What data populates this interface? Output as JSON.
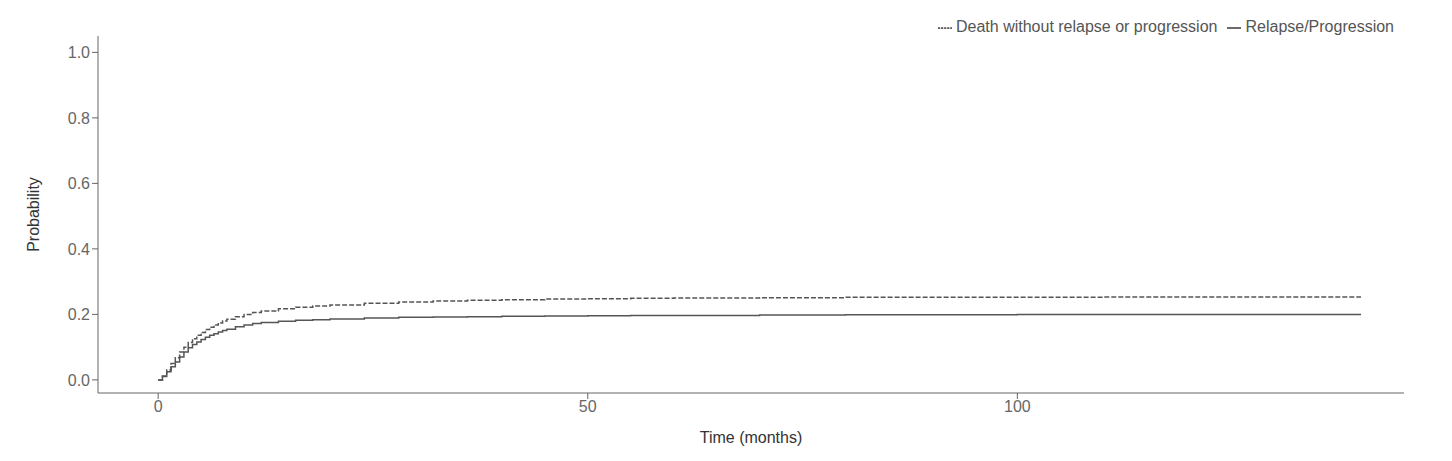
{
  "chart_data": {
    "type": "step",
    "xlabel": "Time (months)",
    "ylabel": "Probability",
    "x": [
      0,
      0.5,
      1,
      1.5,
      2,
      2.5,
      3,
      3.5,
      4,
      4.5,
      5,
      5.5,
      6,
      6.5,
      7,
      7.5,
      8,
      9,
      10,
      11,
      12,
      14,
      16,
      18,
      20,
      24,
      28,
      32,
      36,
      40,
      45,
      50,
      55,
      60,
      70,
      80,
      90,
      100,
      110,
      120,
      130,
      140
    ],
    "series": [
      {
        "name": "Relapse/Progression",
        "color": "#555555",
        "line_style": "solid",
        "values": [
          0.0,
          0.01,
          0.025,
          0.04,
          0.055,
          0.07,
          0.085,
          0.098,
          0.108,
          0.116,
          0.123,
          0.13,
          0.136,
          0.141,
          0.146,
          0.151,
          0.155,
          0.162,
          0.168,
          0.172,
          0.175,
          0.179,
          0.182,
          0.184,
          0.186,
          0.189,
          0.191,
          0.192,
          0.193,
          0.194,
          0.195,
          0.196,
          0.197,
          0.197,
          0.198,
          0.199,
          0.199,
          0.2,
          0.2,
          0.2,
          0.2,
          0.2
        ]
      },
      {
        "name": "Death without relapse or progression",
        "color": "#555555",
        "line_style": "dashed",
        "values": [
          0.0,
          0.012,
          0.03,
          0.05,
          0.068,
          0.085,
          0.1,
          0.114,
          0.126,
          0.136,
          0.145,
          0.154,
          0.161,
          0.168,
          0.174,
          0.18,
          0.185,
          0.193,
          0.2,
          0.206,
          0.21,
          0.217,
          0.222,
          0.226,
          0.229,
          0.234,
          0.238,
          0.241,
          0.243,
          0.245,
          0.247,
          0.248,
          0.249,
          0.25,
          0.251,
          0.252,
          0.252,
          0.252,
          0.253,
          0.253,
          0.253,
          0.253
        ]
      }
    ],
    "xlim": [
      -7,
      145
    ],
    "xticks": [
      0,
      50,
      100
    ],
    "ylim": [
      -0.04,
      1.05
    ],
    "yticks": [
      {
        "value": 0.0,
        "label": "0.0"
      },
      0.2,
      0.4,
      0.6,
      0.8,
      {
        "value": 1.0,
        "label": "1.0"
      }
    ],
    "legend": "upper right",
    "grid": false
  }
}
